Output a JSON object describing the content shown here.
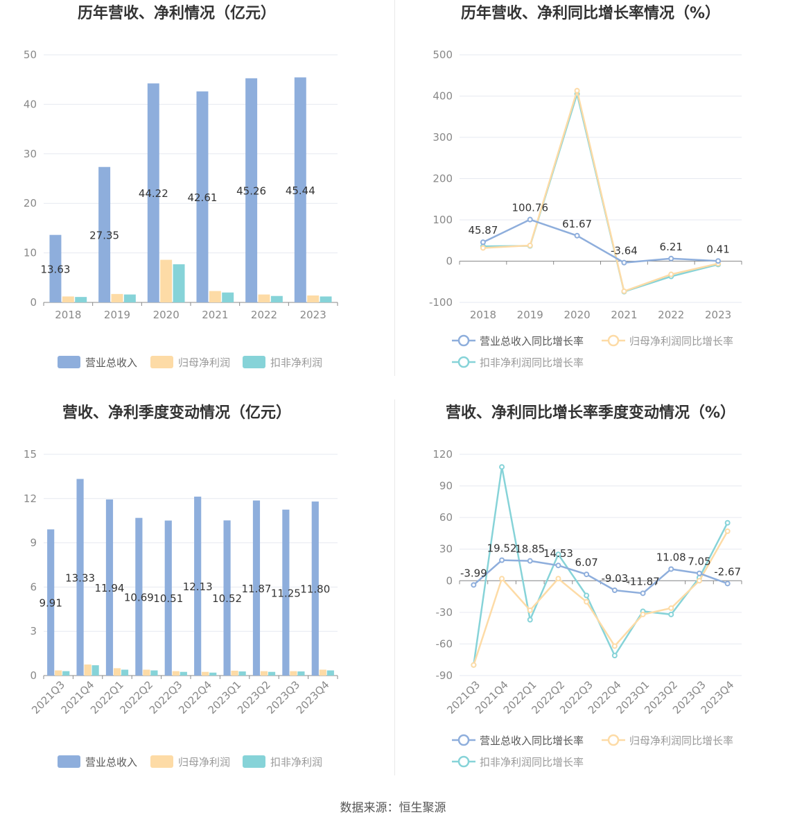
{
  "source_label": "数据来源：恒生聚源",
  "colors": {
    "revenue": "#8eaedc",
    "net_profit": "#fddba6",
    "deducted_profit": "#86d3d8",
    "grid": "#e6e9f0",
    "axis_text": "#888888",
    "label_text": "#333333",
    "title_text": "#333333"
  },
  "chart_data": [
    {
      "type": "bar",
      "title": "历年营收、净利情况（亿元）",
      "categories": [
        "2018",
        "2019",
        "2020",
        "2021",
        "2022",
        "2023"
      ],
      "ylim": [
        0,
        50
      ],
      "yticks": [
        0,
        10,
        20,
        30,
        40,
        50
      ],
      "grid": true,
      "legend_position": "bottom",
      "series": [
        {
          "name": "营业总收入",
          "values": [
            13.63,
            27.35,
            44.22,
            42.61,
            45.26,
            45.44
          ],
          "labels": [
            "13.63",
            "27.35",
            "44.22",
            "42.61",
            "45.26",
            "45.44"
          ]
        },
        {
          "name": "归母净利润",
          "values": [
            1.2,
            1.7,
            8.6,
            2.3,
            1.6,
            1.4
          ]
        },
        {
          "name": "扣非净利润",
          "values": [
            1.1,
            1.6,
            7.7,
            2.0,
            1.3,
            1.2
          ]
        }
      ]
    },
    {
      "type": "line",
      "title": "历年营收、净利同比增长率情况（%）",
      "categories": [
        "2018",
        "2019",
        "2020",
        "2021",
        "2022",
        "2023"
      ],
      "ylim": [
        -100,
        500
      ],
      "yticks": [
        -100,
        0,
        100,
        200,
        300,
        400,
        500
      ],
      "grid": true,
      "legend_position": "bottom",
      "series": [
        {
          "name": "营业总收入同比增长率",
          "values": [
            45.87,
            100.76,
            61.67,
            -3.64,
            6.21,
            0.41
          ],
          "labels": [
            "45.87",
            "100.76",
            "61.67",
            "-3.64",
            "6.21",
            "0.41"
          ]
        },
        {
          "name": "归母净利润同比增长率",
          "values": [
            32,
            38,
            413,
            -73,
            -32,
            -6
          ]
        },
        {
          "name": "扣非净利润同比增长率",
          "values": [
            36,
            37,
            405,
            -74,
            -37,
            -8
          ]
        }
      ]
    },
    {
      "type": "bar",
      "title": "营收、净利季度变动情况（亿元）",
      "categories": [
        "2021Q3",
        "2021Q4",
        "2022Q1",
        "2022Q2",
        "2022Q3",
        "2022Q4",
        "2023Q1",
        "2023Q2",
        "2023Q3",
        "2023Q4"
      ],
      "ylim": [
        0,
        15
      ],
      "yticks": [
        0,
        3,
        6,
        9,
        12,
        15
      ],
      "grid": true,
      "legend_position": "bottom",
      "series": [
        {
          "name": "营业总收入",
          "values": [
            9.91,
            13.33,
            11.94,
            10.69,
            10.51,
            12.13,
            10.52,
            11.87,
            11.25,
            11.8
          ],
          "labels": [
            "9.91",
            "13.33",
            "11.94",
            "10.69",
            "10.51",
            "12.13",
            "10.52",
            "11.87",
            "11.25",
            "11.80"
          ]
        },
        {
          "name": "归母净利润",
          "values": [
            0.35,
            0.75,
            0.5,
            0.4,
            0.3,
            0.25,
            0.33,
            0.3,
            0.3,
            0.4
          ]
        },
        {
          "name": "扣非净利润",
          "values": [
            0.3,
            0.7,
            0.4,
            0.35,
            0.25,
            0.2,
            0.28,
            0.25,
            0.28,
            0.35
          ]
        }
      ]
    },
    {
      "type": "line",
      "title": "营收、净利同比增长率季度变动情况（%）",
      "categories": [
        "2021Q3",
        "2021Q4",
        "2022Q1",
        "2022Q2",
        "2022Q3",
        "2022Q4",
        "2023Q1",
        "2023Q2",
        "2023Q3",
        "2023Q4"
      ],
      "ylim": [
        -90,
        120
      ],
      "yticks": [
        -90,
        -60,
        -30,
        0,
        30,
        60,
        90,
        120
      ],
      "grid": true,
      "legend_position": "bottom",
      "series": [
        {
          "name": "营业总收入同比增长率",
          "values": [
            -3.99,
            19.52,
            18.85,
            14.53,
            6.07,
            -9.03,
            -11.87,
            11.08,
            7.05,
            -2.67
          ],
          "labels": [
            "-3.99",
            "19.52",
            "18.85",
            "14.53",
            "6.07",
            "-9.03",
            "-11.87",
            "11.08",
            "7.05",
            "-2.67"
          ]
        },
        {
          "name": "归母净利润同比增长率",
          "values": [
            -80,
            2,
            -28,
            2,
            -20,
            -62,
            -32,
            -26,
            0,
            47
          ]
        },
        {
          "name": "扣非净利润同比增长率",
          "values": [
            -80,
            108,
            -37,
            25,
            -14,
            -71,
            -29,
            -32,
            3,
            55
          ]
        }
      ]
    }
  ]
}
